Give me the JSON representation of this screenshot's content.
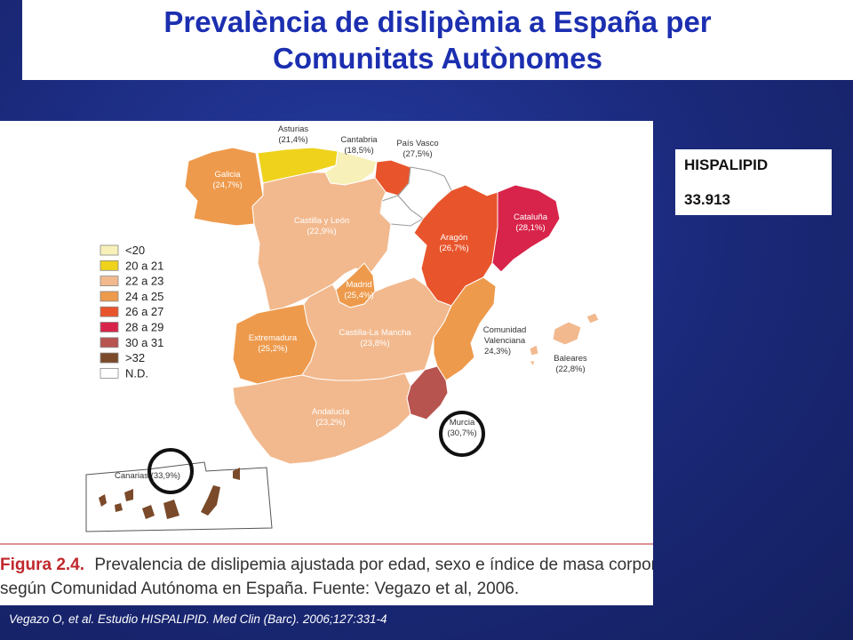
{
  "title": {
    "line1": "Prevalència de dislipèmia a España per",
    "line2": "Comunitats Autònomes"
  },
  "callout": {
    "line1": "HISPALIPID",
    "line2": "33.913"
  },
  "footer": "Vegazo O, et al. Estudio HISPALIPID. Med Clin (Barc). 2006;127:331-4",
  "figure_caption": {
    "prefix": "Figura 2.4.",
    "line1": "Prevalencia de dislipemia ajustada por edad, sexo e índice de masa corporal,",
    "line2": "según Comunidad Autónoma en España. Fuente: Vegazo et al, 2006."
  },
  "legend": [
    {
      "label": "<20",
      "color": "#f7f0b8"
    },
    {
      "label": "20 a 21",
      "color": "#efd21c"
    },
    {
      "label": "22 a 23",
      "color": "#f2b98e"
    },
    {
      "label": "24 a 25",
      "color": "#ee9a4c"
    },
    {
      "label": "26 a 27",
      "color": "#e8552c"
    },
    {
      "label": "28 a 29",
      "color": "#d8244a"
    },
    {
      "label": "30 a 31",
      "color": "#b85450"
    },
    {
      "label": ">32",
      "color": "#7a4a2a"
    },
    {
      "label": "N.D.",
      "color": "#ffffff"
    }
  ],
  "regions": {
    "galicia": {
      "name": "Galicia",
      "value": "(24,7%)"
    },
    "asturias": {
      "name": "Asturias",
      "value": "(21,4%)"
    },
    "cantabria": {
      "name": "Cantabria",
      "value": "(18,5%)"
    },
    "pais_vasco": {
      "name": "País Vasco",
      "value": "(27,5%)"
    },
    "castilla_leon": {
      "name": "Castilla y León",
      "value": "(22,9%)"
    },
    "aragon": {
      "name": "Aragón",
      "value": "(26,7%)"
    },
    "cataluna": {
      "name": "Cataluña",
      "value": "(28,1%)"
    },
    "madrid": {
      "name": "Madrid",
      "value": "(25,4%)"
    },
    "extremadura": {
      "name": "Extremadura",
      "value": "(25,2%)"
    },
    "castilla_la_mancha": {
      "name": "Castilla-La Mancha",
      "value": "(23,8%)"
    },
    "comunidad_valenciana": {
      "name_line1": "Comunidad",
      "name_line2": "Valenciana",
      "value": "24,3%)"
    },
    "baleares": {
      "name": "Baleares",
      "value": "(22,8%)"
    },
    "andalucia": {
      "name": "Andalucía",
      "value": "(23,2%)"
    },
    "murcia": {
      "name": "Murcia",
      "value": "(30,7%)"
    },
    "canarias": {
      "label": "Canarias (33,9%)"
    }
  }
}
